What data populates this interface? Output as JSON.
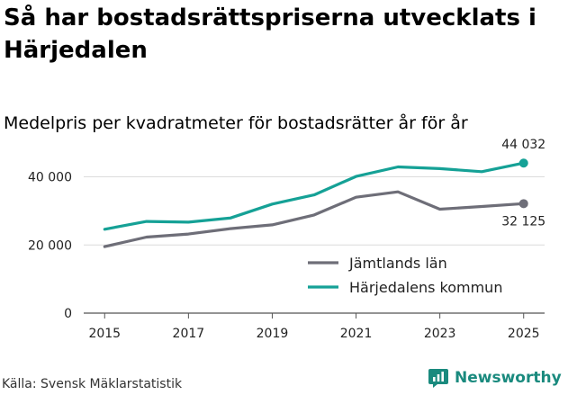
{
  "title": "Så har bostadsrättspriserna utvecklats i Härjedalen",
  "subtitle": "Medelpris per kvadratmeter för bostadsrätter år för år",
  "source": "Källa: Svensk Mäklarstatistik",
  "brand": {
    "name": "Newsworthy",
    "icon": "newsworthy-logo-icon",
    "color": "#1a8a7e"
  },
  "chart_data": {
    "type": "line",
    "title": "Så har bostadsrättspriserna utvecklats i Härjedalen",
    "subtitle": "Medelpris per kvadratmeter för bostadsrätter år för år",
    "x": [
      2015,
      2016,
      2017,
      2018,
      2019,
      2020,
      2021,
      2022,
      2023,
      2024,
      2025
    ],
    "xticks": [
      2015,
      2017,
      2019,
      2021,
      2023,
      2025
    ],
    "xtick_labels": [
      "2015",
      "2017",
      "2019",
      "2021",
      "2023",
      "2025"
    ],
    "yticks": [
      0,
      20000,
      40000
    ],
    "ytick_labels": [
      "0",
      "20 000",
      "40 000"
    ],
    "ylim": [
      0,
      47000
    ],
    "xlim": [
      2014.5,
      2025.5
    ],
    "grid": true,
    "legend_position": "bottom-right",
    "series": [
      {
        "name": "Jämtlands län",
        "color": "#6e6e78",
        "values": [
          19500,
          22300,
          23200,
          24800,
          25900,
          28800,
          34000,
          35600,
          30500,
          31300,
          32125
        ],
        "end_label": "32 125"
      },
      {
        "name": "Härjedalens kommun",
        "color": "#15a196",
        "values": [
          24600,
          26900,
          26700,
          27900,
          32000,
          34700,
          40100,
          42900,
          42400,
          41500,
          44032
        ],
        "end_label": "44 032"
      }
    ]
  }
}
